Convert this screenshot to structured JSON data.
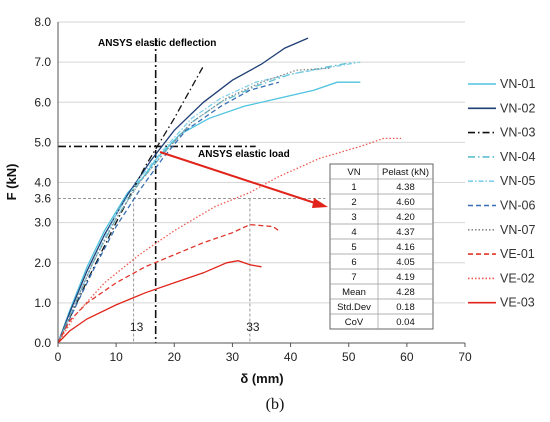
{
  "caption": "(b)",
  "chart_data": {
    "type": "line",
    "xlabel": "δ (mm)",
    "ylabel": "F (kN)",
    "xlim": [
      0,
      70
    ],
    "ylim": [
      0,
      8
    ],
    "xticks": [
      "0",
      "10",
      "20",
      "30",
      "40",
      "50",
      "60",
      "70"
    ],
    "yticks": [
      "0.0",
      "1.0",
      "2.0",
      "3.0",
      "4.0",
      "5.0",
      "6.0",
      "7.0",
      "8.0"
    ],
    "extra_xticks": [
      {
        "value": 13,
        "label": "13"
      },
      {
        "value": 33,
        "label": "33"
      }
    ],
    "extra_yticks": [
      {
        "value": 3.6,
        "label": "3.6"
      }
    ],
    "annotations": {
      "elastic_deflection": {
        "text": "ANSYS elastic deflection",
        "x": 16.8
      },
      "elastic_load": {
        "text": "ANSYS elastic load",
        "y": 4.9
      }
    },
    "series": [
      {
        "name": "VN-01",
        "color": "#4fc3e0",
        "style": "solid",
        "points": [
          [
            0,
            0
          ],
          [
            2,
            0.8
          ],
          [
            5,
            1.9
          ],
          [
            8,
            2.8
          ],
          [
            12,
            3.75
          ],
          [
            14.5,
            4.1
          ],
          [
            17,
            4.6
          ],
          [
            21,
            5.2
          ],
          [
            26,
            5.6
          ],
          [
            32,
            5.9
          ],
          [
            38,
            6.1
          ],
          [
            44,
            6.3
          ],
          [
            48,
            6.5
          ],
          [
            52,
            6.5
          ]
        ]
      },
      {
        "name": "VN-02",
        "color": "#1f3f75",
        "style": "solid",
        "points": [
          [
            0,
            0
          ],
          [
            2,
            0.75
          ],
          [
            5,
            1.8
          ],
          [
            8,
            2.7
          ],
          [
            12,
            3.7
          ],
          [
            16,
            4.55
          ],
          [
            20,
            5.3
          ],
          [
            25,
            6.0
          ],
          [
            30,
            6.55
          ],
          [
            35,
            6.95
          ],
          [
            39,
            7.35
          ],
          [
            43,
            7.6
          ]
        ]
      },
      {
        "name": "VN-03",
        "color": "#111111",
        "style": "dashdot",
        "points": [
          [
            0,
            0
          ],
          [
            5,
            1.55
          ],
          [
            10,
            3.0
          ],
          [
            15,
            4.4
          ],
          [
            20,
            5.6
          ],
          [
            25,
            6.9
          ]
        ]
      },
      {
        "name": "VN-04",
        "color": "#5fbfd0",
        "style": "dashdot",
        "points": [
          [
            0,
            0
          ],
          [
            3,
            1.0
          ],
          [
            6,
            2.0
          ],
          [
            10,
            3.1
          ],
          [
            14,
            4.0
          ],
          [
            18,
            4.7
          ],
          [
            23,
            5.5
          ],
          [
            28,
            6.0
          ],
          [
            34,
            6.4
          ],
          [
            40,
            6.7
          ],
          [
            47,
            6.9
          ],
          [
            51,
            7.0
          ]
        ]
      },
      {
        "name": "VN-05",
        "color": "#7fd0ea",
        "style": "dashdot2",
        "points": [
          [
            0,
            0
          ],
          [
            3,
            1.0
          ],
          [
            6,
            2.0
          ],
          [
            10,
            3.2
          ],
          [
            14,
            4.1
          ],
          [
            18,
            4.8
          ],
          [
            23,
            5.6
          ],
          [
            28,
            6.1
          ],
          [
            34,
            6.5
          ],
          [
            40,
            6.7
          ],
          [
            46,
            6.85
          ],
          [
            52,
            7.0
          ]
        ]
      },
      {
        "name": "VN-06",
        "color": "#3a6fb5",
        "style": "dashed",
        "points": [
          [
            0,
            0
          ],
          [
            3,
            0.9
          ],
          [
            6,
            1.8
          ],
          [
            10,
            2.9
          ],
          [
            14,
            3.8
          ],
          [
            18,
            4.6
          ],
          [
            22,
            5.3
          ],
          [
            28,
            5.9
          ],
          [
            33,
            6.3
          ],
          [
            38,
            6.5
          ]
        ]
      },
      {
        "name": "VN-07",
        "color": "#8a8a8a",
        "style": "dotted",
        "points": [
          [
            0,
            0
          ],
          [
            3,
            1.0
          ],
          [
            6,
            2.0
          ],
          [
            10,
            3.1
          ],
          [
            14,
            4.0
          ],
          [
            18,
            4.7
          ],
          [
            23,
            5.5
          ],
          [
            29,
            6.1
          ],
          [
            35,
            6.5
          ],
          [
            41,
            6.8
          ],
          [
            47,
            6.85
          ]
        ]
      },
      {
        "name": "VE-01",
        "color": "#e0352b",
        "style": "dashed",
        "points": [
          [
            0,
            0
          ],
          [
            2,
            0.55
          ],
          [
            5,
            1.0
          ],
          [
            10,
            1.5
          ],
          [
            15,
            1.9
          ],
          [
            20,
            2.2
          ],
          [
            25,
            2.5
          ],
          [
            30,
            2.75
          ],
          [
            33,
            2.95
          ],
          [
            37,
            2.9
          ],
          [
            38,
            2.8
          ]
        ]
      },
      {
        "name": "VE-02",
        "color": "#ee5a4f",
        "style": "dotted",
        "points": [
          [
            0,
            0
          ],
          [
            3,
            0.7
          ],
          [
            8,
            1.5
          ],
          [
            14,
            2.2
          ],
          [
            20,
            2.8
          ],
          [
            27,
            3.4
          ],
          [
            33,
            3.75
          ],
          [
            38,
            4.15
          ],
          [
            45,
            4.6
          ],
          [
            52,
            4.9
          ],
          [
            56,
            5.1
          ],
          [
            59,
            5.1
          ]
        ]
      },
      {
        "name": "VE-03",
        "color": "#e0241b",
        "style": "solid",
        "points": [
          [
            0,
            0
          ],
          [
            2,
            0.3
          ],
          [
            5,
            0.6
          ],
          [
            10,
            0.95
          ],
          [
            15,
            1.25
          ],
          [
            20,
            1.5
          ],
          [
            25,
            1.75
          ],
          [
            29,
            2.0
          ],
          [
            31,
            2.05
          ],
          [
            33,
            1.95
          ],
          [
            35,
            1.9
          ]
        ]
      }
    ],
    "table": {
      "header": [
        "VN",
        "Pelast (kN)"
      ],
      "rows": [
        [
          "1",
          "4.38"
        ],
        [
          "2",
          "4.60"
        ],
        [
          "3",
          "4.20"
        ],
        [
          "4",
          "4.37"
        ],
        [
          "5",
          "4.16"
        ],
        [
          "6",
          "4.05"
        ],
        [
          "7",
          "4.19"
        ],
        [
          "Mean",
          "4.28"
        ],
        [
          "Std.Dev",
          "0.18"
        ],
        [
          "CoV",
          "0.04"
        ]
      ]
    }
  }
}
